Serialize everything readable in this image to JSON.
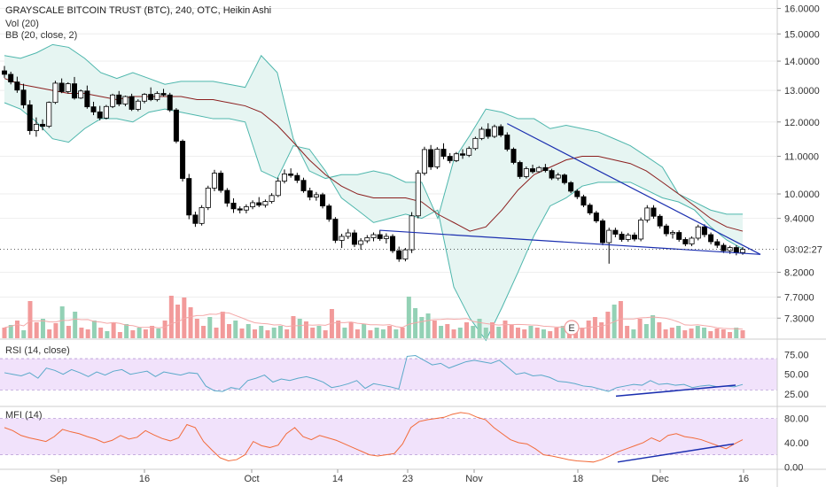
{
  "legend": {
    "title": "GRAYSCALE BITCOIN TRUST (BTC), 240, OTC, Heikin Ashi",
    "vol": "Vol (20)",
    "bb": "BB (20, close, 2)",
    "rsi": "RSI (14, close)",
    "mfi": "MFI (14)"
  },
  "countdown": "03:02:27",
  "event_badge": "E",
  "colors": {
    "up": "#ffffff",
    "down": "#000000",
    "bb_fill": "#e6f5f2",
    "bb_band": "#4db6ac",
    "bb_mid": "#8b1e1e",
    "vol_up": "#93d1b5",
    "vol_down": "#f29a9a",
    "vol_ma": "#f4a8a8",
    "rsi_line": "#5aa9c9",
    "rsi_fill": "#f1e2fb",
    "mfi_line": "#f26b3a",
    "mfi_fill": "#f1e2fb",
    "trendline": "#1b2fb0",
    "grid": "#eeeeee"
  },
  "chart_data": [
    {
      "type": "candlestick",
      "title": "GRAYSCALE BITCOIN TRUST (BTC), 240, OTC, Heikin Ashi",
      "y_ticks": [
        "16.0000",
        "15.0000",
        "14.0000",
        "13.0000",
        "12.0000",
        "11.0000",
        "10.0000",
        "9.4000",
        "8.2000",
        "7.7000",
        "7.3000"
      ],
      "y_tick_values": [
        16.0,
        15.0,
        14.0,
        13.0,
        12.0,
        11.0,
        10.0,
        9.4,
        8.2,
        7.7,
        7.3
      ],
      "x_labels": [
        "Sep",
        "16",
        "Oct",
        "14",
        "23",
        "Nov",
        "18",
        "Dec",
        "16"
      ],
      "price_scale": "log",
      "ylim": [
        7.0,
        16.2
      ],
      "ohlc_series": [
        [
          13.66,
          13.83,
          13.42,
          13.54
        ],
        [
          13.54,
          13.63,
          13.2,
          13.28
        ],
        [
          13.28,
          13.46,
          12.92,
          13.01
        ],
        [
          13.01,
          13.22,
          12.42,
          12.53
        ],
        [
          12.53,
          12.68,
          11.62,
          11.74
        ],
        [
          11.74,
          12.14,
          11.56,
          11.93
        ],
        [
          11.93,
          12.08,
          11.75,
          11.87
        ],
        [
          11.87,
          12.64,
          11.82,
          12.61
        ],
        [
          12.61,
          13.32,
          12.56,
          13.24
        ],
        [
          13.24,
          13.4,
          12.91,
          12.96
        ],
        [
          12.96,
          13.27,
          12.9,
          13.22
        ],
        [
          13.22,
          13.45,
          12.7,
          12.75
        ],
        [
          12.75,
          13.03,
          12.72,
          12.98
        ],
        [
          12.98,
          13.16,
          12.41,
          12.47
        ],
        [
          12.47,
          12.63,
          12.21,
          12.31
        ],
        [
          12.31,
          12.5,
          12.05,
          12.12
        ],
        [
          12.12,
          12.53,
          12.08,
          12.48
        ],
        [
          12.48,
          12.89,
          12.43,
          12.85
        ],
        [
          12.85,
          12.98,
          12.49,
          12.56
        ],
        [
          12.56,
          12.83,
          12.49,
          12.8
        ],
        [
          12.8,
          12.89,
          12.34,
          12.39
        ],
        [
          12.39,
          12.71,
          12.33,
          12.65
        ],
        [
          12.65,
          12.91,
          12.58,
          12.87
        ],
        [
          12.87,
          13.1,
          12.65,
          12.7
        ],
        [
          12.7,
          12.97,
          12.64,
          12.9
        ],
        [
          12.9,
          13.05,
          12.8,
          12.85
        ],
        [
          12.85,
          12.92,
          12.31,
          12.37
        ],
        [
          12.37,
          12.43,
          11.37,
          11.43
        ],
        [
          11.43,
          11.48,
          10.32,
          10.4
        ],
        [
          10.4,
          10.52,
          9.38,
          9.48
        ],
        [
          9.48,
          9.56,
          9.2,
          9.28
        ],
        [
          9.28,
          9.72,
          9.23,
          9.66
        ],
        [
          9.66,
          10.21,
          9.6,
          10.15
        ],
        [
          10.15,
          10.63,
          10.07,
          10.54
        ],
        [
          10.54,
          10.61,
          10.03,
          10.09
        ],
        [
          10.09,
          10.15,
          9.68,
          9.77
        ],
        [
          9.77,
          9.89,
          9.53,
          9.63
        ],
        [
          9.63,
          9.69,
          9.52,
          9.6
        ],
        [
          9.6,
          9.74,
          9.52,
          9.68
        ],
        [
          9.68,
          9.84,
          9.62,
          9.78
        ],
        [
          9.78,
          9.92,
          9.67,
          9.72
        ],
        [
          9.72,
          9.86,
          9.66,
          9.81
        ],
        [
          9.81,
          10.02,
          9.76,
          9.96
        ],
        [
          9.96,
          10.42,
          9.92,
          10.33
        ],
        [
          10.33,
          10.64,
          10.27,
          10.52
        ],
        [
          10.52,
          10.67,
          10.42,
          10.48
        ],
        [
          10.48,
          10.55,
          10.28,
          10.35
        ],
        [
          10.35,
          10.42,
          10.03,
          10.08
        ],
        [
          10.08,
          10.16,
          9.84,
          9.92
        ],
        [
          9.92,
          10.05,
          9.83,
          9.98
        ],
        [
          9.98,
          10.03,
          9.64,
          9.7
        ],
        [
          9.7,
          9.75,
          9.32,
          9.38
        ],
        [
          9.38,
          9.43,
          8.83,
          8.89
        ],
        [
          8.89,
          9.04,
          8.72,
          8.98
        ],
        [
          8.98,
          9.15,
          8.92,
          9.06
        ],
        [
          9.06,
          9.13,
          8.74,
          8.8
        ],
        [
          8.8,
          8.94,
          8.68,
          8.88
        ],
        [
          8.88,
          9.01,
          8.83,
          8.95
        ],
        [
          8.95,
          9.07,
          8.87,
          9.02
        ],
        [
          9.02,
          9.12,
          8.88,
          8.93
        ],
        [
          8.93,
          9.05,
          8.82,
          8.98
        ],
        [
          8.98,
          9.03,
          8.61,
          8.66
        ],
        [
          8.66,
          8.75,
          8.42,
          8.48
        ],
        [
          8.48,
          8.72,
          8.43,
          8.68
        ],
        [
          8.68,
          9.55,
          8.61,
          9.46
        ],
        [
          9.46,
          10.62,
          9.4,
          10.54
        ],
        [
          10.54,
          11.27,
          10.48,
          11.19
        ],
        [
          11.19,
          11.32,
          10.63,
          10.71
        ],
        [
          10.71,
          11.26,
          10.65,
          11.2
        ],
        [
          11.2,
          11.37,
          10.92,
          11.0
        ],
        [
          11.0,
          11.09,
          10.81,
          10.88
        ],
        [
          10.88,
          11.12,
          10.84,
          11.07
        ],
        [
          11.07,
          11.2,
          10.93,
          11.03
        ],
        [
          11.03,
          11.28,
          10.98,
          11.22
        ],
        [
          11.22,
          11.56,
          11.17,
          11.51
        ],
        [
          11.51,
          11.85,
          11.46,
          11.78
        ],
        [
          11.78,
          11.96,
          11.5,
          11.57
        ],
        [
          11.57,
          11.92,
          11.52,
          11.86
        ],
        [
          11.86,
          11.93,
          11.55,
          11.61
        ],
        [
          11.61,
          11.69,
          11.14,
          11.2
        ],
        [
          11.2,
          11.25,
          10.78,
          10.83
        ],
        [
          10.83,
          10.88,
          10.39,
          10.45
        ],
        [
          10.45,
          10.72,
          10.4,
          10.66
        ],
        [
          10.66,
          10.77,
          10.53,
          10.58
        ],
        [
          10.58,
          10.73,
          10.55,
          10.69
        ],
        [
          10.69,
          10.79,
          10.56,
          10.61
        ],
        [
          10.61,
          10.66,
          10.36,
          10.41
        ],
        [
          10.41,
          10.55,
          10.35,
          10.49
        ],
        [
          10.49,
          10.53,
          10.24,
          10.29
        ],
        [
          10.29,
          10.33,
          10.02,
          10.07
        ],
        [
          10.07,
          10.12,
          9.87,
          9.93
        ],
        [
          9.93,
          9.98,
          9.67,
          9.72
        ],
        [
          9.72,
          9.77,
          9.48,
          9.53
        ],
        [
          9.53,
          9.58,
          9.29,
          9.34
        ],
        [
          9.34,
          9.39,
          8.78,
          8.84
        ],
        [
          8.84,
          9.18,
          8.38,
          9.12
        ],
        [
          9.12,
          9.18,
          8.96,
          9.03
        ],
        [
          9.03,
          9.09,
          8.86,
          8.91
        ],
        [
          8.91,
          9.06,
          8.86,
          9.01
        ],
        [
          9.01,
          9.07,
          8.87,
          8.92
        ],
        [
          8.92,
          9.42,
          8.87,
          9.36
        ],
        [
          9.36,
          9.72,
          9.3,
          9.65
        ],
        [
          9.65,
          9.72,
          9.39,
          9.45
        ],
        [
          9.45,
          9.5,
          9.16,
          9.22
        ],
        [
          9.22,
          9.27,
          8.98,
          9.04
        ],
        [
          9.04,
          9.12,
          8.93,
          9.07
        ],
        [
          9.07,
          9.12,
          8.86,
          8.91
        ],
        [
          8.91,
          8.96,
          8.76,
          8.81
        ],
        [
          8.81,
          8.98,
          8.76,
          8.94
        ],
        [
          8.94,
          9.25,
          8.89,
          9.2
        ],
        [
          9.2,
          9.26,
          8.96,
          9.02
        ],
        [
          9.02,
          9.07,
          8.8,
          8.86
        ],
        [
          8.86,
          8.92,
          8.72,
          8.78
        ],
        [
          8.78,
          8.83,
          8.61,
          8.66
        ],
        [
          8.66,
          8.77,
          8.59,
          8.73
        ],
        [
          8.73,
          8.78,
          8.56,
          8.62
        ],
        [
          8.62,
          8.74,
          8.57,
          8.69
        ]
      ],
      "bb_upper": [
        14.2,
        14.1,
        14.3,
        14.6,
        14.5,
        14.1,
        13.6,
        13.4,
        13.6,
        13.4,
        13.2,
        13.3,
        13.3,
        13.3,
        13.2,
        13.1,
        14.2,
        13.6,
        11.5,
        10.6,
        10.4,
        10.5,
        10.5,
        10.6,
        10.5,
        10.3,
        10.3,
        9.4,
        10.9,
        11.6,
        12.4,
        12.3,
        12.1,
        12.1,
        11.8,
        11.9,
        11.8,
        11.7,
        11.5,
        11.3,
        11.0,
        10.7,
        10.0,
        9.8,
        9.6,
        9.5,
        9.5
      ],
      "bb_mid": [
        13.4,
        13.2,
        13.1,
        13.0,
        12.9,
        12.9,
        12.8,
        12.7,
        12.8,
        12.8,
        12.8,
        12.8,
        12.7,
        12.7,
        12.6,
        12.5,
        12.3,
        11.9,
        11.4,
        10.9,
        10.5,
        10.2,
        10.0,
        9.9,
        9.9,
        9.9,
        9.8,
        9.5,
        9.3,
        9.1,
        9.2,
        9.6,
        10.1,
        10.5,
        10.7,
        10.9,
        11.0,
        11.0,
        10.9,
        10.8,
        10.6,
        10.3,
        10.0,
        9.7,
        9.4,
        9.2,
        9.1
      ],
      "bb_lower": [
        12.6,
        12.4,
        12.0,
        11.5,
        11.4,
        11.8,
        12.1,
        12.1,
        12.0,
        12.3,
        12.4,
        12.3,
        12.2,
        12.1,
        12.1,
        12.0,
        10.6,
        10.4,
        11.3,
        11.2,
        10.6,
        9.9,
        9.6,
        9.3,
        9.4,
        9.5,
        9.4,
        9.6,
        7.9,
        7.3,
        6.9,
        7.5,
        8.2,
        9.0,
        9.7,
        9.9,
        10.2,
        10.3,
        10.3,
        10.3,
        10.1,
        9.9,
        9.8,
        9.6,
        9.2,
        8.9,
        8.7
      ],
      "volume_up_down": [
        0,
        1,
        0,
        1,
        0,
        0,
        1,
        0,
        0,
        1,
        0,
        1,
        0,
        0,
        1,
        0,
        1,
        0,
        0,
        1,
        0,
        1,
        0,
        0,
        1,
        0,
        0,
        0,
        0,
        0,
        0,
        0,
        1,
        0,
        0,
        0,
        1,
        0,
        1,
        0,
        1,
        0,
        1,
        1,
        0,
        0,
        1,
        0,
        0,
        1,
        0,
        0,
        0,
        1,
        0,
        0,
        1,
        0,
        1,
        1,
        0,
        1,
        0,
        1,
        1,
        1,
        1,
        0,
        1,
        0,
        0,
        1,
        0,
        1,
        1,
        1,
        0,
        1,
        0,
        0,
        0,
        0,
        1,
        0,
        1,
        0,
        0,
        1,
        0,
        0,
        0,
        0,
        0,
        0,
        0,
        1,
        0,
        0,
        1,
        0,
        1,
        1,
        0,
        0,
        0,
        1,
        0,
        0,
        1,
        1,
        0,
        0,
        0,
        0,
        1,
        0,
        1
      ],
      "volume": [
        0.12,
        0.15,
        0.2,
        0.09,
        0.42,
        0.18,
        0.22,
        0.1,
        0.17,
        0.36,
        0.14,
        0.3,
        0.12,
        0.1,
        0.2,
        0.12,
        0.08,
        0.18,
        0.07,
        0.16,
        0.09,
        0.12,
        0.1,
        0.14,
        0.11,
        0.2,
        0.48,
        0.38,
        0.46,
        0.35,
        0.22,
        0.14,
        0.24,
        0.12,
        0.3,
        0.16,
        0.2,
        0.11,
        0.16,
        0.1,
        0.14,
        0.09,
        0.12,
        0.14,
        0.1,
        0.25,
        0.22,
        0.19,
        0.12,
        0.14,
        0.09,
        0.33,
        0.2,
        0.12,
        0.18,
        0.1,
        0.16,
        0.09,
        0.12,
        0.1,
        0.14,
        0.1,
        0.12,
        0.47,
        0.34,
        0.24,
        0.28,
        0.2,
        0.14,
        0.16,
        0.1,
        0.12,
        0.18,
        0.14,
        0.22,
        0.12,
        0.18,
        0.13,
        0.2,
        0.15,
        0.12,
        0.1,
        0.14,
        0.12,
        0.1,
        0.08,
        0.12,
        0.14,
        0.1,
        0.09,
        0.12,
        0.2,
        0.24,
        0.18,
        0.3,
        0.38,
        0.42,
        0.14,
        0.1,
        0.22,
        0.16,
        0.26,
        0.18,
        0.1,
        0.12,
        0.14,
        0.09,
        0.11,
        0.14,
        0.12,
        0.08,
        0.11,
        0.1,
        0.07,
        0.12,
        0.09
      ],
      "rsi_ticks": [
        "75.00",
        "50.00",
        "25.00"
      ],
      "rsi_tick_values": [
        75,
        50,
        25
      ],
      "rsi": [
        52,
        50,
        48,
        52,
        45,
        58,
        55,
        50,
        56,
        52,
        47,
        53,
        49,
        54,
        56,
        50,
        52,
        54,
        47,
        53,
        51,
        49,
        52,
        51,
        35,
        29,
        28,
        33,
        31,
        42,
        45,
        49,
        40,
        44,
        42,
        45,
        47,
        44,
        40,
        33,
        35,
        38,
        42,
        32,
        38,
        36,
        34,
        31,
        73,
        74,
        68,
        62,
        64,
        58,
        62,
        66,
        68,
        66,
        64,
        68,
        59,
        50,
        52,
        48,
        49,
        46,
        41,
        40,
        38,
        35,
        34,
        31,
        28,
        33,
        35,
        37,
        36,
        42,
        37,
        38,
        36,
        37,
        33,
        35,
        36,
        34,
        35,
        34,
        37
      ],
      "mfi_ticks": [
        "80.00",
        "40.00",
        "0.00"
      ],
      "mfi_tick_values": [
        80,
        40,
        0
      ],
      "mfi": [
        65,
        60,
        52,
        48,
        45,
        42,
        50,
        62,
        58,
        55,
        50,
        46,
        40,
        44,
        52,
        46,
        49,
        60,
        53,
        47,
        43,
        48,
        70,
        65,
        42,
        28,
        15,
        10,
        12,
        20,
        42,
        35,
        32,
        36,
        55,
        65,
        50,
        45,
        52,
        48,
        44,
        38,
        32,
        26,
        20,
        18,
        20,
        22,
        38,
        65,
        75,
        78,
        80,
        82,
        87,
        90,
        88,
        82,
        78,
        65,
        55,
        45,
        40,
        38,
        30,
        20,
        18,
        15,
        12,
        10,
        9,
        8,
        12,
        18,
        25,
        30,
        35,
        40,
        48,
        42,
        52,
        55,
        50,
        48,
        45,
        40,
        35,
        30,
        38,
        45
      ]
    }
  ]
}
